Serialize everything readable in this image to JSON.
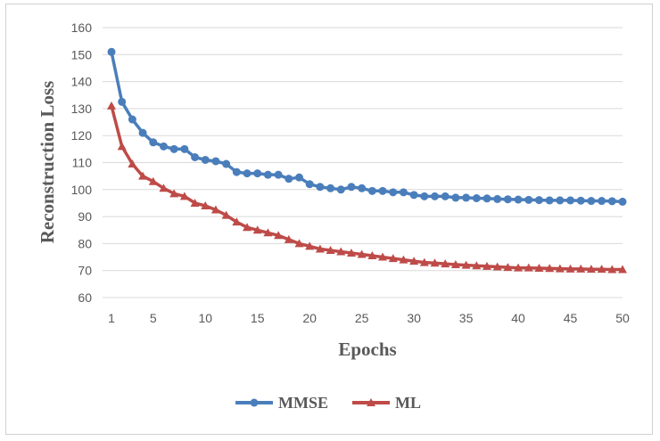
{
  "chart_data": {
    "type": "line",
    "title": "",
    "xlabel": "Epochs",
    "ylabel": "Reconstruction Loss",
    "xlim": [
      1,
      50
    ],
    "ylim": [
      60,
      160
    ],
    "x_ticks": [
      "1",
      "5",
      "10",
      "15",
      "20",
      "25",
      "30",
      "35",
      "40",
      "45",
      "50"
    ],
    "y_ticks": [
      "60",
      "70",
      "80",
      "90",
      "100",
      "110",
      "120",
      "130",
      "140",
      "150",
      "160"
    ],
    "grid": "horizontal",
    "legend_position": "bottom",
    "x": [
      1,
      2,
      3,
      4,
      5,
      6,
      7,
      8,
      9,
      10,
      11,
      12,
      13,
      14,
      15,
      16,
      17,
      18,
      19,
      20,
      21,
      22,
      23,
      24,
      25,
      26,
      27,
      28,
      29,
      30,
      31,
      32,
      33,
      34,
      35,
      36,
      37,
      38,
      39,
      40,
      41,
      42,
      43,
      44,
      45,
      46,
      47,
      48,
      49,
      50
    ],
    "series": [
      {
        "name": "MMSE",
        "color": "#4a7ebb",
        "marker": "circle",
        "values": [
          151,
          132.5,
          126,
          121,
          117.5,
          116,
          115,
          115,
          112,
          111,
          110.5,
          109.5,
          106.5,
          106,
          106,
          105.5,
          105.5,
          104,
          104.5,
          102,
          101,
          100.5,
          100,
          101,
          100.5,
          99.5,
          99.5,
          99,
          99,
          98,
          97.5,
          97.5,
          97.5,
          97,
          97,
          96.8,
          96.7,
          96.5,
          96.4,
          96.3,
          96.2,
          96.1,
          96,
          96,
          96,
          95.9,
          95.8,
          95.8,
          95.7,
          95.5
        ]
      },
      {
        "name": "ML",
        "color": "#be4b48",
        "marker": "triangle",
        "values": [
          131,
          116,
          109.5,
          105,
          103,
          100.5,
          98.5,
          97.5,
          95,
          94,
          92.5,
          90.5,
          88,
          86,
          85,
          84,
          83,
          81.5,
          80,
          79,
          78,
          77.5,
          77,
          76.5,
          76,
          75.5,
          75,
          74.5,
          74,
          73.5,
          73,
          72.8,
          72.5,
          72.2,
          72,
          71.8,
          71.6,
          71.4,
          71.2,
          71,
          71,
          70.9,
          70.8,
          70.7,
          70.6,
          70.6,
          70.5,
          70.5,
          70.4,
          70.4
        ]
      }
    ]
  }
}
